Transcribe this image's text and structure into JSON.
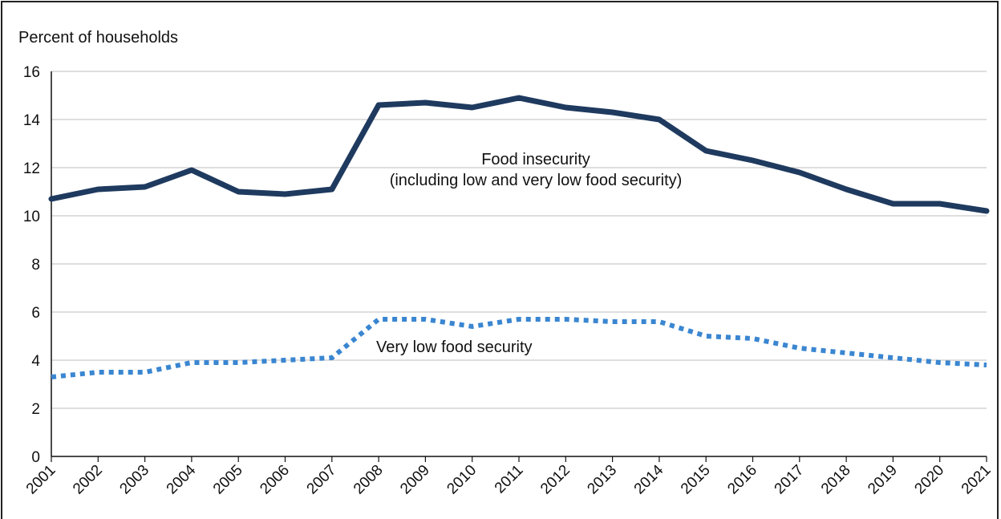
{
  "chart_data": {
    "type": "line",
    "title": "",
    "ylabel": "Percent of households",
    "xlabel": "",
    "ylim": [
      0,
      16
    ],
    "yticks": [
      0,
      2,
      4,
      6,
      8,
      10,
      12,
      14,
      16
    ],
    "x": [
      "2001",
      "2002",
      "2003",
      "2004",
      "2005",
      "2006",
      "2007",
      "2008",
      "2009",
      "2010",
      "2011",
      "2012",
      "2013",
      "2014",
      "2015",
      "2016",
      "2017",
      "2018",
      "2019",
      "2020",
      "2021"
    ],
    "grid": true,
    "series": [
      {
        "name": "Food insecurity (including low and very low food security)",
        "label_lines": [
          "Food insecurity",
          "(including low and very low food security)"
        ],
        "style": "solid",
        "color": "#1f3a5f",
        "values": [
          10.7,
          11.1,
          11.2,
          11.9,
          11.0,
          10.9,
          11.1,
          14.6,
          14.7,
          14.5,
          14.9,
          14.5,
          14.3,
          14.0,
          12.7,
          12.3,
          11.8,
          11.1,
          10.5,
          10.5,
          10.2
        ]
      },
      {
        "name": "Very low food security",
        "label_lines": [
          "Very low food security"
        ],
        "style": "dotted",
        "color": "#3a86d1",
        "values": [
          3.3,
          3.5,
          3.5,
          3.9,
          3.9,
          4.0,
          4.1,
          5.7,
          5.7,
          5.4,
          5.7,
          5.7,
          5.6,
          5.6,
          5.0,
          4.9,
          4.5,
          4.3,
          4.1,
          3.9,
          3.8
        ]
      }
    ]
  }
}
